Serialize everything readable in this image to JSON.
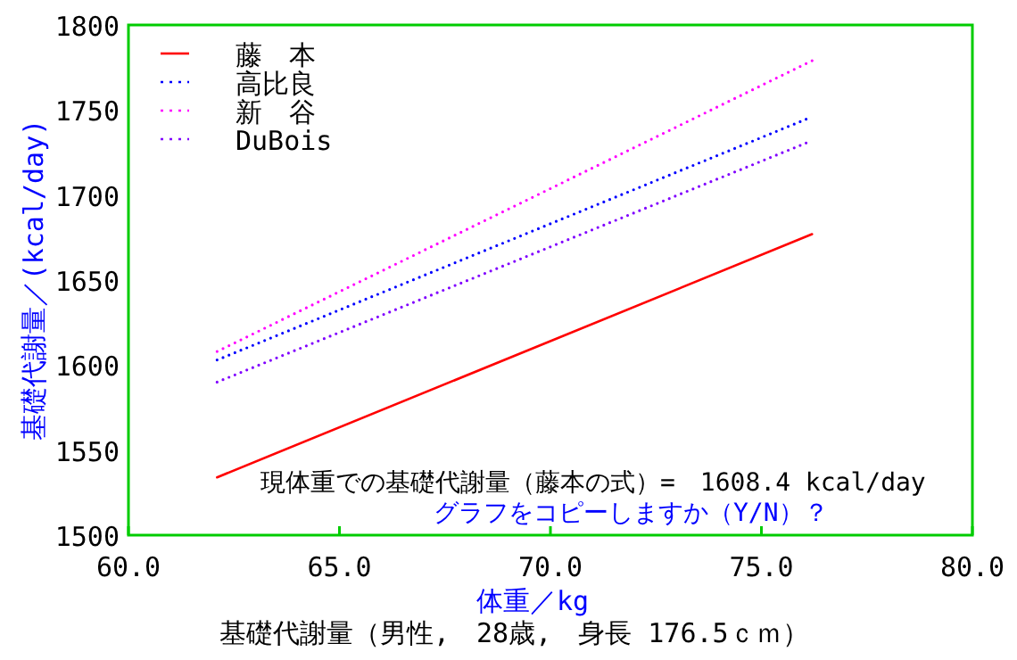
{
  "chart_data": {
    "type": "line",
    "xlabel": "体重／kg",
    "ylabel": "基礎代謝量／(kcal/day)",
    "subtitle": "基礎代謝量（男性,　28歳,　身長 176.5ｃｍ）",
    "annotations": [
      "現体重での基礎代謝量（藤本の式）=　1608.4 kcal/day",
      "グラフをコピーしますか（Y/N）？"
    ],
    "x": [
      62.1,
      76.2
    ],
    "series": [
      {
        "name": "藤　本",
        "color": "#ff0000",
        "line_style": "solid",
        "values": [
          1534,
          1677
        ]
      },
      {
        "name": "高比良",
        "color": "#0000ff",
        "line_style": "dotted",
        "values": [
          1603,
          1746
        ]
      },
      {
        "name": "新　谷",
        "color": "#ff00ff",
        "line_style": "dotted",
        "values": [
          1608,
          1779
        ]
      },
      {
        "name": "DuBois",
        "color": "#8000ff",
        "line_style": "dotted",
        "values": [
          1590,
          1732
        ]
      }
    ],
    "xlim": [
      60,
      80
    ],
    "ylim": [
      1500,
      1800
    ],
    "xticks": [
      {
        "value": 60,
        "label": "60.0"
      },
      {
        "value": 65,
        "label": "65.0"
      },
      {
        "value": 70,
        "label": "70.0"
      },
      {
        "value": 75,
        "label": "75.0"
      },
      {
        "value": 80,
        "label": "80.0"
      }
    ],
    "yticks": [
      1500,
      1550,
      1600,
      1650,
      1700,
      1750,
      1800
    ],
    "grid": false,
    "legend": "top left"
  }
}
